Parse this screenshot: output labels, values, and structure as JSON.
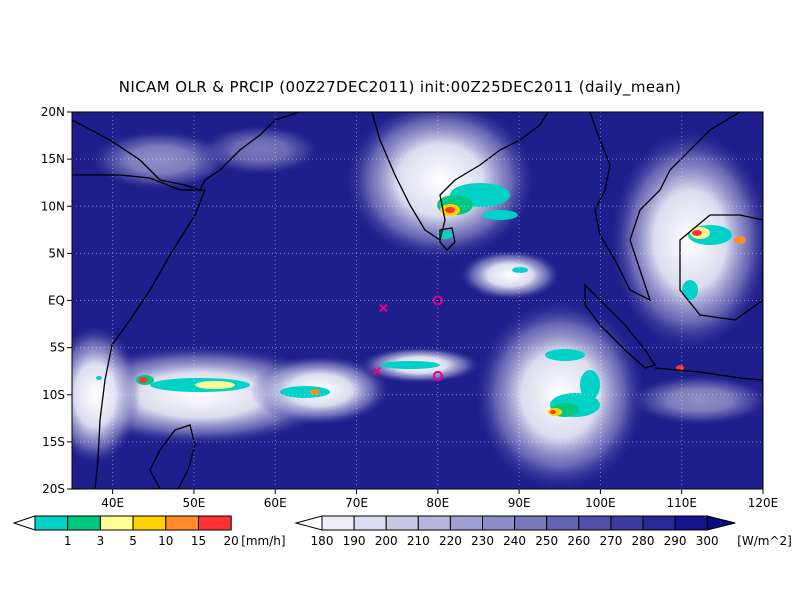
{
  "title": "NICAM OLR & PRCIP (00Z27DEC2011) init:00Z25DEC2011 (daily_mean)",
  "map": {
    "lon_labels": [
      "40E",
      "50E",
      "60E",
      "70E",
      "80E",
      "90E",
      "100E",
      "110E",
      "120E"
    ],
    "lat_labels": [
      "20N",
      "15N",
      "10N",
      "5N",
      "EQ",
      "5S",
      "10S",
      "15S",
      "20S"
    ],
    "markers": [
      {
        "symbol": "x",
        "lon": 73.3,
        "lat": -0.8
      },
      {
        "symbol": "x",
        "lon": 72.5,
        "lat": -7.5
      },
      {
        "symbol": "circle",
        "lon": 80,
        "lat": 0
      },
      {
        "symbol": "circle",
        "lon": 80,
        "lat": -8
      }
    ]
  },
  "precip_legend": {
    "labels": [
      "1",
      "3",
      "5",
      "10",
      "15",
      "20"
    ],
    "unit": "[mm/h]",
    "colors": [
      "#00d2c8",
      "#00c880",
      "#ffff96",
      "#ffd200",
      "#ff8c28",
      "#ff3232"
    ]
  },
  "olr_legend": {
    "labels": [
      "180",
      "190",
      "200",
      "210",
      "220",
      "230",
      "240",
      "250",
      "260",
      "270",
      "280",
      "290",
      "300"
    ],
    "unit": "[W/m^2]",
    "colors": [
      "#ffffff",
      "#eeeef8",
      "#dcdcf0",
      "#c8c8e6",
      "#b4b4dc",
      "#a0a0d2",
      "#8c8cc8",
      "#7878be",
      "#6464b4",
      "#5050aa",
      "#3c3ca0",
      "#282896",
      "#14148c",
      "#0a0a82"
    ]
  }
}
